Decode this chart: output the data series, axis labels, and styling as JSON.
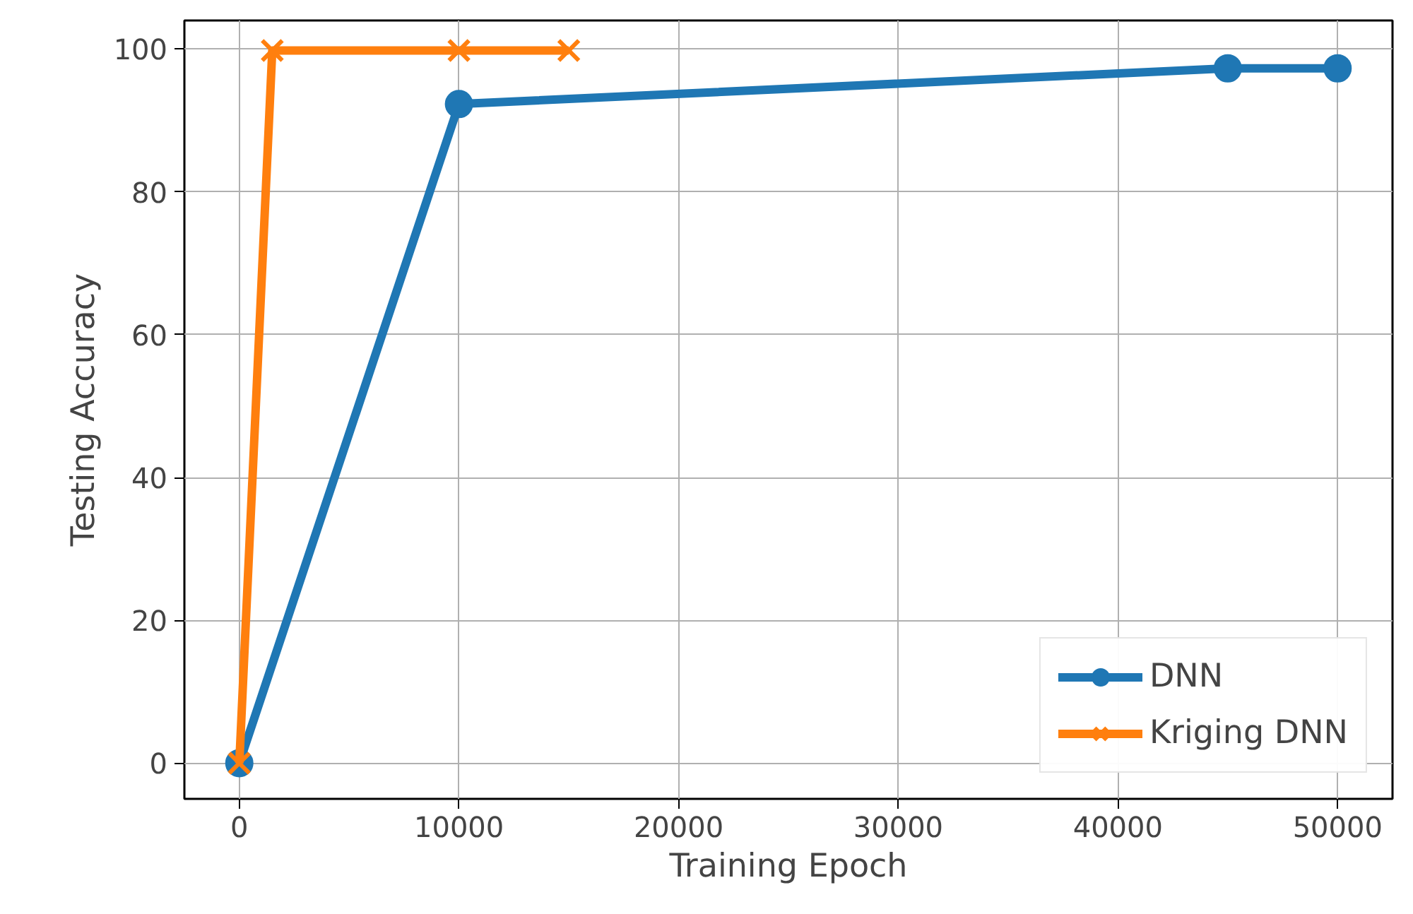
{
  "chart_data": {
    "type": "line",
    "xlabel": "Training Epoch",
    "ylabel": "Testing Accuracy",
    "xlim": [
      -2500,
      52500
    ],
    "ylim": [
      -5,
      104
    ],
    "xticks": [
      0,
      10000,
      20000,
      30000,
      40000,
      50000
    ],
    "yticks": [
      0,
      20,
      40,
      60,
      80,
      100
    ],
    "grid": true,
    "legend": "bottom right",
    "series": [
      {
        "name": "DNN",
        "color": "#1f77b4",
        "marker": "circle",
        "x": [
          0,
          10000,
          45000,
          50000
        ],
        "values": [
          0,
          92.3,
          97.3,
          97.3
        ]
      },
      {
        "name": "Kriging DNN",
        "color": "#ff7f0e",
        "marker": "cross",
        "x": [
          0,
          1500,
          10000,
          15000
        ],
        "values": [
          0,
          99.8,
          99.8,
          99.8
        ]
      }
    ]
  }
}
